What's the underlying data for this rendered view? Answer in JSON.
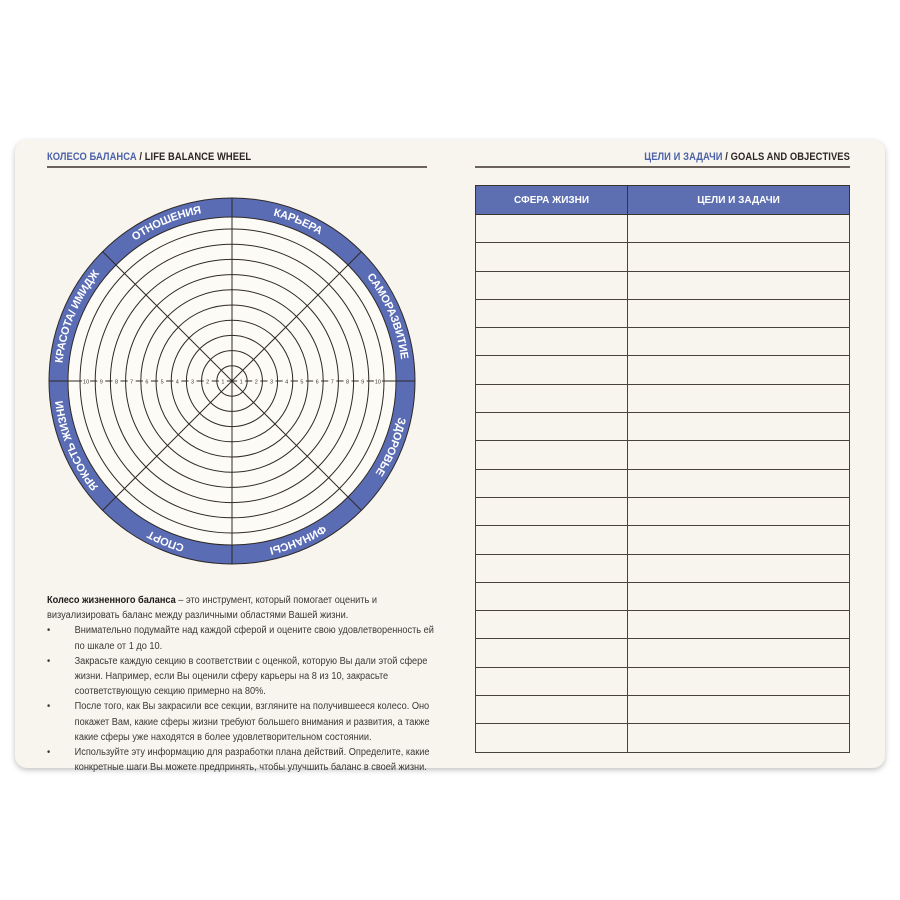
{
  "left_page": {
    "header_ru": "КОЛЕСО БАЛАНСА",
    "header_sep": " / ",
    "header_en": "LIFE BALANCE WHEEL",
    "wheel": {
      "sectors": [
        "КАРЬЕРА",
        "САМОРАЗВИТИЕ",
        "ЗДОРОВЬЕ",
        "ФИНАНСЫ",
        "СПОРТ",
        "ЯРКОСТЬ ЖИЗНИ",
        "КРАСОТА/ ИМИДЖ",
        "ОТНОШЕНИЯ"
      ],
      "scale": [
        "1",
        "2",
        "3",
        "4",
        "5",
        "6",
        "7",
        "8",
        "9",
        "10"
      ],
      "ring_color": "#5a6cb4"
    },
    "description": {
      "lead_bold": "Колесо жизненного баланса",
      "lead_rest": " – это инструмент, который помогает оценить и визуализировать баланс между различными областями Вашей жизни.",
      "bullets": [
        "Внимательно подумайте над каждой сферой и оцените свою удовлетворенность ей по шкале от 1 до 10.",
        "Закрасьте каждую секцию в соответствии с оценкой, которую Вы дали этой сфере жизни. Например, если Вы оценили сферу карьеры на 8 из 10, закрасьте соответствующую секцию примерно на 80%.",
        "После того, как Вы закрасили все секции, взгляните на получившееся колесо. Оно покажет Вам, какие сферы жизни требуют большего внимания и развития, а также какие сферы уже находятся в более удовлетворительном состоянии.",
        "Используйте эту информацию для разработки плана действий. Определите, какие конкретные шаги Вы можете предпринять, чтобы улучшить баланс в своей жизни."
      ]
    }
  },
  "right_page": {
    "header_ru": "ЦЕЛИ И ЗАДАЧИ",
    "header_sep": " / ",
    "header_en": "GOALS AND OBJECTIVES",
    "table": {
      "columns": [
        "СФЕРА ЖИЗНИ",
        "ЦЕЛИ И ЗАДАЧИ"
      ],
      "empty_rows": 19,
      "header_color": "#5d6fb1"
    }
  }
}
